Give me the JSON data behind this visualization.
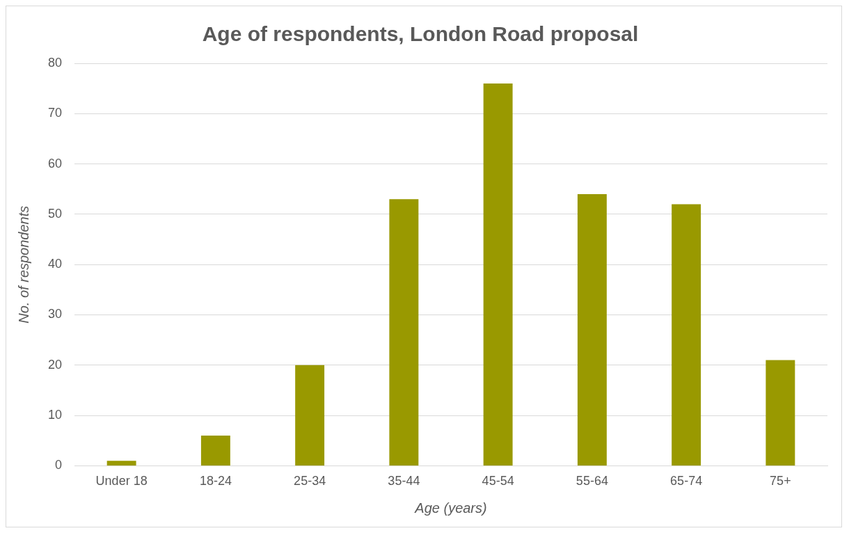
{
  "chart_data": {
    "type": "bar",
    "title": "Age of respondents, London Road proposal",
    "xlabel": "Age (years)",
    "ylabel": "No. of respondents",
    "categories": [
      "Under 18",
      "18-24",
      "25-34",
      "35-44",
      "45-54",
      "55-64",
      "65-74",
      "75+"
    ],
    "values": [
      1,
      6,
      20,
      53,
      76,
      54,
      52,
      21
    ],
    "color": "#999900",
    "ylim": [
      0,
      80
    ],
    "yticks": [
      0,
      10,
      20,
      30,
      40,
      50,
      60,
      70,
      80
    ],
    "grid": "y",
    "legend": false
  }
}
